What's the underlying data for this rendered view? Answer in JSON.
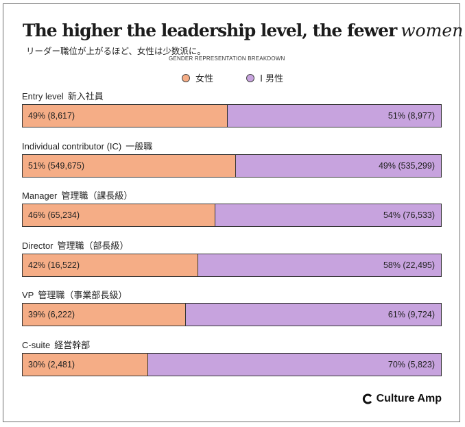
{
  "title": "The higher the leadership level, the fewer",
  "title_script": "women",
  "subtitle_jp": "リーダー職位が上がるほど、女性は少数派に。",
  "subtitle_en": "GENDER REPRESENTATION BREAKDOWN",
  "legend": {
    "women_label": "女性",
    "men_label": "I 男性"
  },
  "colors": {
    "women": "#f5ad86",
    "men": "#c7a3de"
  },
  "logo_text": "Culture Amp",
  "chart_data": {
    "type": "bar",
    "stacked": "100%",
    "orientation": "horizontal",
    "categories": [
      {
        "en": "Entry level",
        "jp": "新入社員"
      },
      {
        "en": "Individual contributor (IC)",
        "jp": "一般職"
      },
      {
        "en": "Manager",
        "jp": "管理職（課長級）"
      },
      {
        "en": "Director",
        "jp": "管理職（部長級）"
      },
      {
        "en": "VP",
        "jp": "管理職（事業部長級）"
      },
      {
        "en": "C-suite",
        "jp": "経営幹部"
      }
    ],
    "series": [
      {
        "name": "女性",
        "color": "#f5ad86",
        "values": [
          49,
          51,
          46,
          42,
          39,
          30
        ],
        "labels": [
          "49% (8,617)",
          "51% (549,675)",
          "46% (65,234)",
          "42% (16,522)",
          "39% (6,222)",
          "30% (2,481)"
        ]
      },
      {
        "name": "男性",
        "color": "#c7a3de",
        "values": [
          51,
          49,
          54,
          58,
          61,
          70
        ],
        "labels": [
          "51% (8,977)",
          "49% (535,299)",
          "54% (76,533)",
          "58% (22,495)",
          "61% (9,724)",
          "70% (5,823)"
        ]
      }
    ]
  }
}
